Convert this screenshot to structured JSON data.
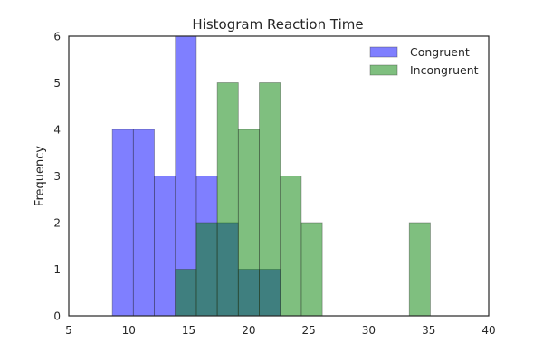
{
  "chart_data": {
    "type": "bar",
    "title": "Histogram Reaction Time",
    "xlabel": "",
    "ylabel": "Frequency",
    "xlim": [
      5,
      40
    ],
    "ylim": [
      0,
      6
    ],
    "xticks": [
      5,
      10,
      15,
      20,
      25,
      30,
      35,
      40
    ],
    "yticks": [
      0,
      1,
      2,
      3,
      4,
      5,
      6
    ],
    "legend_position": "top-right",
    "grid": false,
    "series": [
      {
        "name": "Congruent",
        "color": "#0000ff",
        "opacity": 0.5,
        "bins": [
          {
            "start": 8.63,
            "end": 10.38,
            "count": 4
          },
          {
            "start": 10.38,
            "end": 12.13,
            "count": 4
          },
          {
            "start": 12.13,
            "end": 13.88,
            "count": 3
          },
          {
            "start": 13.88,
            "end": 15.63,
            "count": 6
          },
          {
            "start": 15.63,
            "end": 17.38,
            "count": 3
          },
          {
            "start": 17.38,
            "end": 19.13,
            "count": 2
          },
          {
            "start": 19.13,
            "end": 20.88,
            "count": 1
          },
          {
            "start": 20.88,
            "end": 22.63,
            "count": 1
          }
        ]
      },
      {
        "name": "Incongruent",
        "color": "#008000",
        "opacity": 0.5,
        "bins": [
          {
            "start": 13.88,
            "end": 15.63,
            "count": 1
          },
          {
            "start": 15.63,
            "end": 17.38,
            "count": 2
          },
          {
            "start": 17.38,
            "end": 19.13,
            "count": 5
          },
          {
            "start": 19.13,
            "end": 20.88,
            "count": 4
          },
          {
            "start": 20.88,
            "end": 22.63,
            "count": 5
          },
          {
            "start": 22.63,
            "end": 24.38,
            "count": 3
          },
          {
            "start": 24.38,
            "end": 26.13,
            "count": 2
          },
          {
            "start": 33.38,
            "end": 35.13,
            "count": 2
          }
        ]
      }
    ]
  }
}
